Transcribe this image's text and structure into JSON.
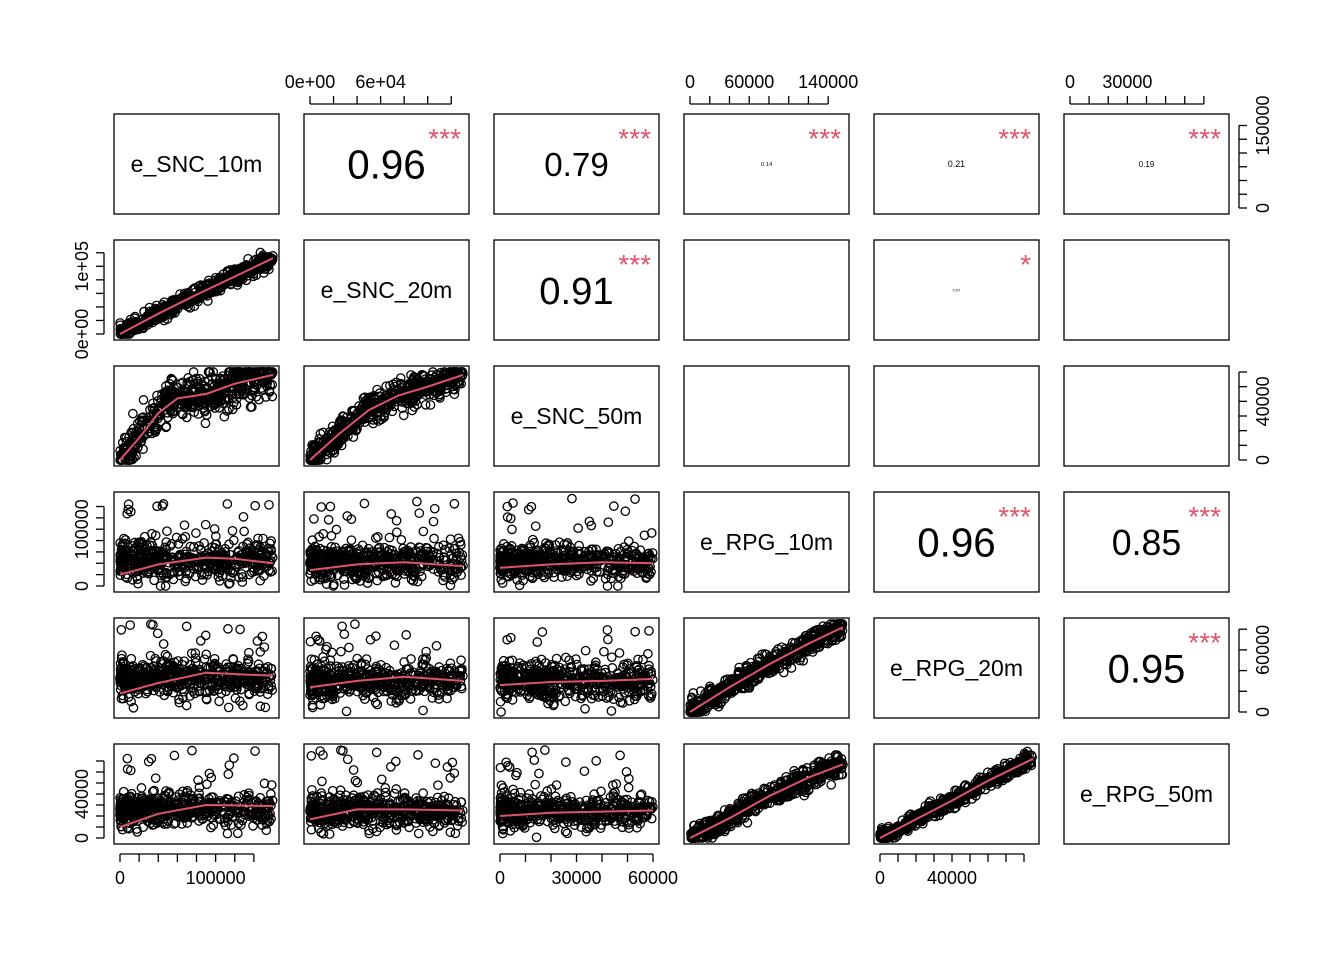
{
  "chart_data": {
    "type": "scatter",
    "variables": [
      "e_SNC_10m",
      "e_SNC_20m",
      "e_SNC_50m",
      "e_RPG_10m",
      "e_RPG_20m",
      "e_RPG_50m"
    ],
    "ranges": [
      [
        0,
        160000
      ],
      [
        0,
        130000
      ],
      [
        0,
        60000
      ],
      [
        0,
        155000
      ],
      [
        0,
        85000
      ],
      [
        0,
        80000
      ]
    ],
    "correlations": [
      {
        "row": 0,
        "col": 1,
        "value": "0.96",
        "stars": "***"
      },
      {
        "row": 0,
        "col": 2,
        "value": "0.79",
        "stars": "***"
      },
      {
        "row": 0,
        "col": 3,
        "value": "0.14",
        "stars": "***"
      },
      {
        "row": 0,
        "col": 4,
        "value": "0.21",
        "stars": "***"
      },
      {
        "row": 0,
        "col": 5,
        "value": "0.19",
        "stars": "***"
      },
      {
        "row": 1,
        "col": 2,
        "value": "0.91",
        "stars": "***"
      },
      {
        "row": 1,
        "col": 3,
        "value": "",
        "stars": ""
      },
      {
        "row": 1,
        "col": 4,
        "value": "0.07",
        "stars": "*"
      },
      {
        "row": 1,
        "col": 5,
        "value": "",
        "stars": ""
      },
      {
        "row": 2,
        "col": 3,
        "value": "",
        "stars": ""
      },
      {
        "row": 2,
        "col": 4,
        "value": "",
        "stars": ""
      },
      {
        "row": 2,
        "col": 5,
        "value": "",
        "stars": ""
      },
      {
        "row": 3,
        "col": 4,
        "value": "0.96",
        "stars": "***"
      },
      {
        "row": 3,
        "col": 5,
        "value": "0.85",
        "stars": "***"
      },
      {
        "row": 4,
        "col": 5,
        "value": "0.95",
        "stars": "***"
      }
    ],
    "axes": {
      "top": [
        {
          "col": 1,
          "labels": [
            {
              "v": 0,
              "t": "0e+00"
            },
            {
              "v": 60000,
              "t": "6e+04"
            }
          ],
          "ticks": [
            0,
            20000,
            40000,
            60000,
            80000,
            100000,
            120000
          ]
        },
        {
          "col": 3,
          "labels": [
            {
              "v": 0,
              "t": "0"
            },
            {
              "v": 60000,
              "t": "60000"
            },
            {
              "v": 140000,
              "t": "140000"
            }
          ],
          "ticks": [
            0,
            20000,
            40000,
            60000,
            80000,
            100000,
            120000,
            140000
          ]
        },
        {
          "col": 5,
          "labels": [
            {
              "v": 0,
              "t": "0"
            },
            {
              "v": 30000,
              "t": "30000"
            }
          ],
          "ticks": [
            0,
            10000,
            20000,
            30000,
            40000,
            50000,
            60000,
            70000
          ]
        }
      ],
      "bottom": [
        {
          "col": 0,
          "labels": [
            {
              "v": 0,
              "t": "0"
            },
            {
              "v": 100000,
              "t": "100000"
            }
          ],
          "ticks": [
            0,
            20000,
            40000,
            60000,
            80000,
            100000,
            120000,
            140000
          ]
        },
        {
          "col": 2,
          "labels": [
            {
              "v": 0,
              "t": "0"
            },
            {
              "v": 30000,
              "t": "30000"
            },
            {
              "v": 60000,
              "t": "60000"
            }
          ],
          "ticks": [
            0,
            10000,
            20000,
            30000,
            40000,
            50000,
            60000
          ]
        },
        {
          "col": 4,
          "labels": [
            {
              "v": 0,
              "t": "0"
            },
            {
              "v": 40000,
              "t": "40000"
            }
          ],
          "ticks": [
            0,
            10000,
            20000,
            30000,
            40000,
            50000,
            60000,
            70000,
            80000
          ]
        }
      ],
      "left": [
        {
          "row": 1,
          "labels": [
            {
              "v": 0,
              "t": "0e+00"
            },
            {
              "v": 100000,
              "t": "1e+05"
            }
          ],
          "ticks": [
            0,
            20000,
            40000,
            60000,
            80000,
            100000,
            120000
          ]
        },
        {
          "row": 3,
          "labels": [
            {
              "v": 0,
              "t": "0"
            },
            {
              "v": 100000,
              "t": "100000"
            }
          ],
          "ticks": [
            0,
            20000,
            40000,
            60000,
            80000,
            100000,
            120000,
            140000
          ]
        },
        {
          "row": 5,
          "labels": [
            {
              "v": 0,
              "t": "0"
            },
            {
              "v": 40000,
              "t": "40000"
            }
          ],
          "ticks": [
            0,
            10000,
            20000,
            30000,
            40000,
            50000,
            60000,
            70000
          ]
        }
      ],
      "right": [
        {
          "row": 0,
          "labels": [
            {
              "v": 0,
              "t": "0"
            },
            {
              "v": 150000,
              "t": "150000"
            }
          ],
          "ticks": [
            0,
            25000,
            50000,
            75000,
            100000,
            125000,
            150000
          ]
        },
        {
          "row": 2,
          "labels": [
            {
              "v": 0,
              "t": "0"
            },
            {
              "v": 40000,
              "t": "40000"
            }
          ],
          "ticks": [
            0,
            10000,
            20000,
            30000,
            40000,
            50000,
            60000
          ]
        },
        {
          "row": 4,
          "labels": [
            {
              "v": 0,
              "t": "0"
            },
            {
              "v": 60000,
              "t": "60000"
            }
          ],
          "ticks": [
            0,
            20000,
            40000,
            60000,
            80000
          ]
        }
      ]
    },
    "lower_panels": [
      {
        "row": 1,
        "col": 0,
        "pattern": "linear",
        "slope": 0.7,
        "noise": 6000,
        "n": 520,
        "smooth": [
          [
            0,
            0
          ],
          [
            40000,
            30000
          ],
          [
            80000,
            58000
          ],
          [
            120000,
            85000
          ],
          [
            160000,
            112000
          ]
        ]
      },
      {
        "row": 2,
        "col": 0,
        "pattern": "saturating",
        "noise": 7000,
        "n": 520,
        "smooth": [
          [
            0,
            0
          ],
          [
            20000,
            15000
          ],
          [
            40000,
            32000
          ],
          [
            60000,
            42000
          ],
          [
            90000,
            45000
          ],
          [
            120000,
            52000
          ],
          [
            160000,
            58000
          ]
        ]
      },
      {
        "row": 2,
        "col": 1,
        "pattern": "saturating",
        "noise": 5000,
        "n": 520,
        "smooth": [
          [
            0,
            0
          ],
          [
            25000,
            18000
          ],
          [
            50000,
            34000
          ],
          [
            75000,
            44000
          ],
          [
            100000,
            50000
          ],
          [
            130000,
            58000
          ]
        ]
      },
      {
        "row": 3,
        "col": 0,
        "pattern": "cloud",
        "center": 45000,
        "spread": 28000,
        "n": 520,
        "smooth": [
          [
            0,
            20000
          ],
          [
            40000,
            38000
          ],
          [
            90000,
            50000
          ],
          [
            120000,
            48000
          ],
          [
            160000,
            40000
          ]
        ]
      },
      {
        "row": 3,
        "col": 1,
        "pattern": "cloud",
        "center": 42000,
        "spread": 28000,
        "n": 520,
        "smooth": [
          [
            0,
            28000
          ],
          [
            40000,
            38000
          ],
          [
            80000,
            42000
          ],
          [
            130000,
            35000
          ]
        ]
      },
      {
        "row": 3,
        "col": 2,
        "pattern": "cloud",
        "center": 42000,
        "spread": 26000,
        "n": 520,
        "smooth": [
          [
            0,
            32000
          ],
          [
            20000,
            38000
          ],
          [
            40000,
            42000
          ],
          [
            60000,
            40000
          ]
        ]
      },
      {
        "row": 4,
        "col": 0,
        "pattern": "cloud",
        "center": 32000,
        "spread": 15000,
        "n": 520,
        "smooth": [
          [
            0,
            18000
          ],
          [
            40000,
            28000
          ],
          [
            90000,
            38000
          ],
          [
            160000,
            35000
          ]
        ]
      },
      {
        "row": 4,
        "col": 1,
        "pattern": "cloud",
        "center": 30000,
        "spread": 15000,
        "n": 520,
        "smooth": [
          [
            0,
            24000
          ],
          [
            40000,
            30000
          ],
          [
            80000,
            34000
          ],
          [
            130000,
            30000
          ]
        ]
      },
      {
        "row": 4,
        "col": 2,
        "pattern": "cloud",
        "center": 30000,
        "spread": 15000,
        "n": 520,
        "smooth": [
          [
            0,
            26000
          ],
          [
            20000,
            29000
          ],
          [
            40000,
            30000
          ],
          [
            60000,
            32000
          ]
        ]
      },
      {
        "row": 4,
        "col": 3,
        "pattern": "linear",
        "slope": 0.55,
        "noise": 5500,
        "n": 520,
        "smooth": [
          [
            0,
            0
          ],
          [
            40000,
            24000
          ],
          [
            80000,
            46000
          ],
          [
            120000,
            66000
          ],
          [
            155000,
            82000
          ]
        ]
      },
      {
        "row": 5,
        "col": 0,
        "pattern": "cloud",
        "center": 26000,
        "spread": 13000,
        "n": 520,
        "smooth": [
          [
            0,
            10000
          ],
          [
            40000,
            22000
          ],
          [
            90000,
            30000
          ],
          [
            160000,
            29000
          ]
        ]
      },
      {
        "row": 5,
        "col": 1,
        "pattern": "cloud",
        "center": 24000,
        "spread": 13000,
        "n": 520,
        "smooth": [
          [
            0,
            17000
          ],
          [
            40000,
            26000
          ],
          [
            80000,
            26000
          ],
          [
            130000,
            25000
          ]
        ]
      },
      {
        "row": 5,
        "col": 2,
        "pattern": "cloud",
        "center": 24000,
        "spread": 13000,
        "n": 520,
        "smooth": [
          [
            0,
            20000
          ],
          [
            20000,
            23000
          ],
          [
            40000,
            24000
          ],
          [
            60000,
            25000
          ]
        ]
      },
      {
        "row": 5,
        "col": 3,
        "pattern": "linear",
        "slope": 0.43,
        "noise": 5000,
        "n": 520,
        "smooth": [
          [
            0,
            0
          ],
          [
            40000,
            18000
          ],
          [
            80000,
            38000
          ],
          [
            120000,
            55000
          ],
          [
            155000,
            67000
          ]
        ]
      },
      {
        "row": 5,
        "col": 4,
        "pattern": "linear",
        "slope": 0.85,
        "noise": 3500,
        "n": 520,
        "smooth": [
          [
            0,
            0
          ],
          [
            20000,
            17000
          ],
          [
            40000,
            34000
          ],
          [
            60000,
            52000
          ],
          [
            85000,
            72000
          ]
        ]
      }
    ],
    "colors": {
      "points": "#000000",
      "smooth": "#DF536B",
      "stars": "#DF536B"
    }
  }
}
